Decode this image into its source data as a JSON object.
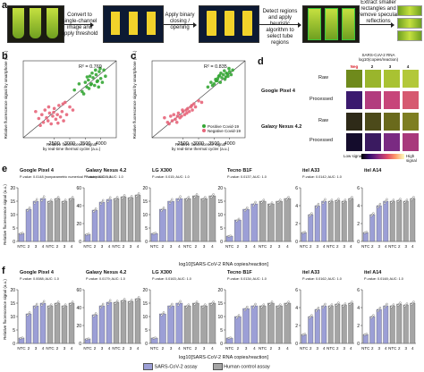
{
  "panel_a": {
    "letter": "a",
    "steps": [
      "Convert to single-channel image and apply threshold",
      "Apply binary closing / opening",
      "Detect regions and apply heuristic algorithm to select tube regions",
      "Extract smaller rectangles and remove specular reflections"
    ]
  },
  "panel_b": {
    "letter": "b",
    "r2": "R² = 0.769",
    "xlabel1": "Relative fluorescence signal",
    "xlabel2": "by real-time thermal cycler (a.u.)",
    "ylabel1": "Relative fluorescence signal",
    "ylabel2": "by smartphone (a.u.)"
  },
  "panel_c": {
    "letter": "c",
    "r2": "R² = 0.835",
    "xlabel1": "Relative fluorescence signal",
    "xlabel2": "by real-time thermal cycler (a.u.)",
    "ylabel1": "Relative fluorescence signal",
    "ylabel2": "by smartphone (a.u.)",
    "legend": [
      "Positive Covid-19",
      "Negative Covid-19"
    ]
  },
  "panel_d": {
    "letter": "d",
    "header1": "SARS-CoV-2 RNA",
    "header2": "log10(copies/reaction)",
    "cols": [
      "Neg",
      "2",
      "3",
      "4"
    ],
    "devices": [
      "Google Pixel 4",
      "Galaxy Nexus 4.2"
    ],
    "rows": [
      "Raw",
      "Processed",
      "Raw",
      "Processed"
    ],
    "scale_low": "Low signal",
    "scale_high": "High signal"
  },
  "panel_e": {
    "letter": "e",
    "ylabel": "Relative fluorescence signal (a.u.)",
    "xlabel": "log10[SARS-CoV-2 RNA copies/reaction]",
    "phones": [
      {
        "name": "Google Pixel 4",
        "stat": "P-value: 0.0148 (nonparametric numerical P-value) AUC: 1.0"
      },
      {
        "name": "Galaxy Nexus 4.2",
        "stat": "P-value: 0.019; AUC: 1.0"
      },
      {
        "name": "LG X300",
        "stat": "P-value: 0.015; AUC: 1.0"
      },
      {
        "name": "Tecno B1F",
        "stat": "P-value: 0.0137; AUC: 1.0"
      },
      {
        "name": "itel A33",
        "stat": "P-value: 0.0142; AUC: 1.0"
      },
      {
        "name": "itel A14",
        "stat": ""
      }
    ]
  },
  "panel_f": {
    "letter": "f",
    "ylabel": "Relative fluorescence signal (a.u.)",
    "xlabel": "log10[SARS-CoV-2 RNA copies/reaction]",
    "phones": [
      {
        "name": "Google Pixel 4",
        "stat": "P-value: 0.0088; AUC: 1.0"
      },
      {
        "name": "Galaxy Nexus 4.2",
        "stat": "P-value: 0.0179; AUC: 1.0"
      },
      {
        "name": "LG X300",
        "stat": "P-value: 0.0163; AUC: 1.0"
      },
      {
        "name": "Tecno B1F",
        "stat": "P-value: 0.0134; AUC: 1.0"
      },
      {
        "name": "itel A33",
        "stat": "P-value: 0.0162; AUC: 1.0"
      },
      {
        "name": "itel A14",
        "stat": "P-value: 0.0148; AUC: 1.0"
      }
    ]
  },
  "xticks": [
    "NTC",
    "2",
    "3",
    "4"
  ],
  "legend": [
    "SARS-CoV-2 assay",
    "Human control assay"
  ],
  "colors": {
    "sars": "#9c9fd6",
    "human": "#a5a5a5",
    "positive": "#35a635",
    "negative": "#e7657a"
  },
  "chart_data": [
    {
      "type": "scatter",
      "title": "",
      "xlabel": "Relative fluorescence signal by real-time thermal cycler (a.u.)",
      "ylabel": "Relative fluorescence signal by smartphone (a.u.)",
      "xlim": [
        1500,
        4500
      ],
      "xticks": [
        2500,
        3000,
        3500,
        4000
      ],
      "annotation": "R² = 0.769",
      "series": [
        {
          "name": "Positive Covid-19",
          "color": "#35a635",
          "x": [
            3150,
            3300,
            3400,
            3500,
            3550,
            3600,
            3650,
            3700,
            3750,
            3800,
            3850,
            3900,
            3950,
            4000,
            4050,
            4100,
            4150,
            3450,
            3620,
            3720,
            3880,
            3980,
            3560,
            3680,
            3830,
            3930
          ],
          "y": [
            0.62,
            0.7,
            0.6,
            0.72,
            0.66,
            0.75,
            0.8,
            0.7,
            0.78,
            0.68,
            0.82,
            0.74,
            0.86,
            0.77,
            0.72,
            0.88,
            0.8,
            0.57,
            0.64,
            0.84,
            0.73,
            0.9,
            0.79,
            0.69,
            0.88,
            0.66
          ]
        },
        {
          "name": "Negative Covid-19",
          "color": "#e7657a",
          "x": [
            1900,
            2000,
            2100,
            2150,
            2200,
            2250,
            2300,
            2350,
            2400,
            2450,
            2500,
            2550,
            2600,
            2650,
            2700,
            2750,
            2800,
            2850,
            2900,
            3000,
            3100,
            2050,
            2320,
            2480,
            2620,
            2780
          ],
          "y": [
            0.34,
            0.25,
            0.3,
            0.2,
            0.36,
            0.26,
            0.22,
            0.32,
            0.18,
            0.28,
            0.38,
            0.24,
            0.3,
            0.42,
            0.27,
            0.34,
            0.22,
            0.46,
            0.3,
            0.4,
            0.36,
            0.16,
            0.4,
            0.33,
            0.19,
            0.44
          ]
        }
      ]
    },
    {
      "type": "scatter",
      "title": "",
      "xlabel": "Relative fluorescence signal by real-time thermal cycler (a.u.)",
      "ylabel": "Relative fluorescence signal by smartphone (a.u.)",
      "xlim": [
        1500,
        4500
      ],
      "xticks": [
        2500,
        3000,
        3500,
        4000
      ],
      "annotation": "R² = 0.835",
      "series": [
        {
          "name": "Positive Covid-19",
          "color": "#35a635",
          "x": [
            3300,
            3400,
            3500,
            3550,
            3600,
            3650,
            3700,
            3750,
            3800,
            3850,
            3900,
            3950,
            4000,
            4050,
            4100,
            3450,
            3620,
            3720,
            3880,
            3980,
            3560,
            3680,
            3830,
            3930
          ],
          "y": [
            0.66,
            0.72,
            0.7,
            0.76,
            0.74,
            0.8,
            0.72,
            0.78,
            0.82,
            0.76,
            0.84,
            0.8,
            0.86,
            0.82,
            0.88,
            0.68,
            0.77,
            0.84,
            0.79,
            0.9,
            0.74,
            0.81,
            0.87,
            0.83
          ]
        },
        {
          "name": "Negative Covid-19",
          "color": "#e7657a",
          "x": [
            1900,
            2000,
            2100,
            2150,
            2200,
            2250,
            2300,
            2350,
            2400,
            2450,
            2500,
            2550,
            2600,
            2650,
            2700,
            2750,
            2800,
            2850,
            2900,
            3000,
            3100,
            2050,
            2320,
            2480,
            2620,
            2780
          ],
          "y": [
            0.26,
            0.2,
            0.28,
            0.22,
            0.3,
            0.24,
            0.2,
            0.32,
            0.26,
            0.28,
            0.34,
            0.3,
            0.36,
            0.38,
            0.34,
            0.4,
            0.36,
            0.44,
            0.4,
            0.48,
            0.46,
            0.18,
            0.28,
            0.36,
            0.32,
            0.42
          ]
        }
      ]
    },
    {
      "type": "bar",
      "panel": "e",
      "title": "",
      "xlabel": "log10[SARS-CoV-2 RNA copies/reaction]",
      "ylabel": "Relative fluorescence signal (a.u.)",
      "categories": [
        "NTC",
        "2",
        "3",
        "4"
      ],
      "groups": [
        {
          "name": "Google Pixel 4",
          "ylim": [
            0,
            20
          ],
          "yticks": [
            0,
            5,
            10,
            15,
            20
          ],
          "series": [
            {
              "name": "SARS-CoV-2 assay",
              "values": [
                3,
                12,
                15,
                16
              ]
            },
            {
              "name": "Human control assay",
              "values": [
                15,
                16,
                15,
                16
              ]
            }
          ]
        },
        {
          "name": "Galaxy Nexus 4.2",
          "ylim": [
            0,
            60
          ],
          "yticks": [
            0,
            20,
            40,
            60
          ],
          "series": [
            {
              "name": "SARS-CoV-2 assay",
              "values": [
                8,
                35,
                44,
                47
              ]
            },
            {
              "name": "Human control assay",
              "values": [
                48,
                50,
                49,
                52
              ]
            }
          ]
        },
        {
          "name": "LG X300",
          "ylim": [
            0,
            20
          ],
          "yticks": [
            0,
            5,
            10,
            15,
            20
          ],
          "series": [
            {
              "name": "SARS-CoV-2 assay",
              "values": [
                3,
                12,
                15,
                16
              ]
            },
            {
              "name": "Human control assay",
              "values": [
                16,
                17,
                16,
                17
              ]
            }
          ]
        },
        {
          "name": "Tecno B1F",
          "ylim": [
            0,
            20
          ],
          "yticks": [
            0,
            5,
            10,
            15,
            20
          ],
          "series": [
            {
              "name": "SARS-CoV-2 assay",
              "values": [
                2,
                8,
                12,
                14
              ]
            },
            {
              "name": "Human control assay",
              "values": [
                15,
                14,
                15,
                16
              ]
            }
          ]
        },
        {
          "name": "itel A33",
          "ylim": [
            0,
            6
          ],
          "yticks": [
            0,
            2,
            4,
            6
          ],
          "series": [
            {
              "name": "SARS-CoV-2 assay",
              "values": [
                1,
                3,
                4,
                4.5
              ]
            },
            {
              "name": "Human control assay",
              "values": [
                4.5,
                4.6,
                4.5,
                4.8
              ]
            }
          ]
        },
        {
          "name": "itel A14",
          "ylim": [
            0,
            6
          ],
          "yticks": [
            0,
            2,
            4,
            6
          ],
          "series": [
            {
              "name": "SARS-CoV-2 assay",
              "values": [
                1,
                3,
                4,
                4.5
              ]
            },
            {
              "name": "Human control assay",
              "values": [
                4.5,
                4.6,
                4.5,
                4.8
              ]
            }
          ]
        }
      ]
    },
    {
      "type": "bar",
      "panel": "f",
      "title": "",
      "xlabel": "log10[SARS-CoV-2 RNA copies/reaction]",
      "ylabel": "Relative fluorescence signal (a.u.)",
      "categories": [
        "NTC",
        "2",
        "3",
        "4"
      ],
      "groups": [
        {
          "name": "Google Pixel 4",
          "ylim": [
            0,
            20
          ],
          "yticks": [
            0,
            5,
            10,
            15,
            20
          ],
          "series": [
            {
              "name": "SARS-CoV-2 assay",
              "values": [
                2,
                11,
                14,
                15
              ]
            },
            {
              "name": "Human control assay",
              "values": [
                14,
                15,
                14,
                15
              ]
            }
          ]
        },
        {
          "name": "Galaxy Nexus 4.2",
          "ylim": [
            0,
            60
          ],
          "yticks": [
            0,
            20,
            40,
            60
          ],
          "series": [
            {
              "name": "SARS-CoV-2 assay",
              "values": [
                5,
                32,
                42,
                46
              ]
            },
            {
              "name": "Human control assay",
              "values": [
                46,
                48,
                47,
                50
              ]
            }
          ]
        },
        {
          "name": "LG X300",
          "ylim": [
            0,
            20
          ],
          "yticks": [
            0,
            5,
            10,
            15,
            20
          ],
          "series": [
            {
              "name": "SARS-CoV-2 assay",
              "values": [
                2,
                11,
                14,
                15
              ]
            },
            {
              "name": "Human control assay",
              "values": [
                14,
                15,
                14,
                15
              ]
            }
          ]
        },
        {
          "name": "Tecno B1F",
          "ylim": [
            0,
            20
          ],
          "yticks": [
            0,
            5,
            10,
            15,
            20
          ],
          "series": [
            {
              "name": "SARS-CoV-2 assay",
              "values": [
                2,
                10,
                13,
                14
              ]
            },
            {
              "name": "Human control assay",
              "values": [
                14,
                15,
                14,
                15
              ]
            }
          ]
        },
        {
          "name": "itel A33",
          "ylim": [
            0,
            6
          ],
          "yticks": [
            0,
            2,
            4,
            6
          ],
          "series": [
            {
              "name": "SARS-CoV-2 assay",
              "values": [
                1,
                3,
                3.8,
                4.2
              ]
            },
            {
              "name": "Human control assay",
              "values": [
                4.2,
                4.4,
                4.3,
                4.5
              ]
            }
          ]
        },
        {
          "name": "itel A14",
          "ylim": [
            0,
            6
          ],
          "yticks": [
            0,
            2,
            4,
            6
          ],
          "series": [
            {
              "name": "SARS-CoV-2 assay",
              "values": [
                1,
                3,
                3.8,
                4.2
              ]
            },
            {
              "name": "Human control assay",
              "values": [
                4.2,
                4.4,
                4.3,
                4.5
              ]
            }
          ]
        }
      ]
    }
  ]
}
